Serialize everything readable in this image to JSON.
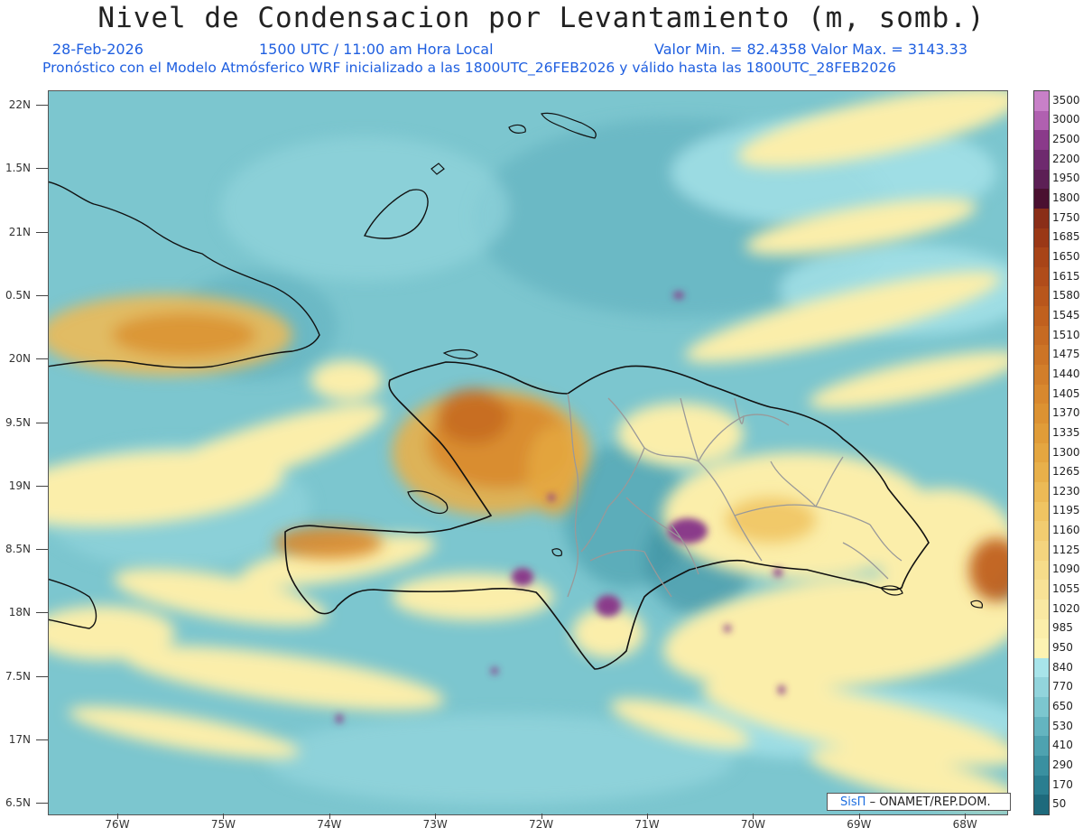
{
  "header": {
    "title": "Nivel de Condensacion por Levantamiento (m, somb.)",
    "date": "28-Feb-2026",
    "time": "1500 UTC / 11:00 am Hora Local",
    "minmax": "Valor Min. = 82.4358   Valor Max. = 3143.33",
    "subtitle": "Pronóstico con el Modelo Atmósferico WRF inicializado a las 1800UTC_26FEB2026 y válido hasta las   1800UTC_28FEB2026"
  },
  "map": {
    "latitudes": [
      "22N",
      "1.5N",
      "21N",
      "0.5N",
      "20N",
      "9.5N",
      "19N",
      "8.5N",
      "18N",
      "7.5N",
      "17N",
      "6.5N"
    ],
    "longitudes": [
      "76W",
      "75W",
      "74W",
      "73W",
      "72W",
      "71W",
      "70W",
      "69W",
      "68W"
    ]
  },
  "colorbar": {
    "levels": [
      "3500",
      "3000",
      "2500",
      "2200",
      "1950",
      "1800",
      "1750",
      "1685",
      "1650",
      "1615",
      "1580",
      "1545",
      "1510",
      "1475",
      "1440",
      "1405",
      "1370",
      "1335",
      "1300",
      "1265",
      "1230",
      "1195",
      "1160",
      "1125",
      "1090",
      "1055",
      "1020",
      "985",
      "950",
      "840",
      "770",
      "650",
      "530",
      "410",
      "290",
      "170",
      "50"
    ],
    "colors": [
      "#c880c8",
      "#b060b0",
      "#8a3a8a",
      "#6e2a6e",
      "#5c1f55",
      "#4a1030",
      "#8a2e18",
      "#9a3816",
      "#a84418",
      "#b04c1a",
      "#b8561c",
      "#c0601e",
      "#c66a22",
      "#cc7426",
      "#d27e2a",
      "#d8882e",
      "#dc9232",
      "#e09c38",
      "#e4a640",
      "#e8b04a",
      "#ecba56",
      "#f0c462",
      "#f2cc70",
      "#f4d47e",
      "#f6dc8a",
      "#f8e296",
      "#f9e8a2",
      "#fbeeaa",
      "#fdf3b2",
      "#a8e4ea",
      "#92d4dc",
      "#7cc6cf",
      "#64b4c0",
      "#4ea2b0",
      "#3a90a0",
      "#2a7e90",
      "#1e6a7c"
    ]
  },
  "credit": {
    "brand": "SisΠ",
    "org": "– ONAMET/REP.DOM."
  }
}
